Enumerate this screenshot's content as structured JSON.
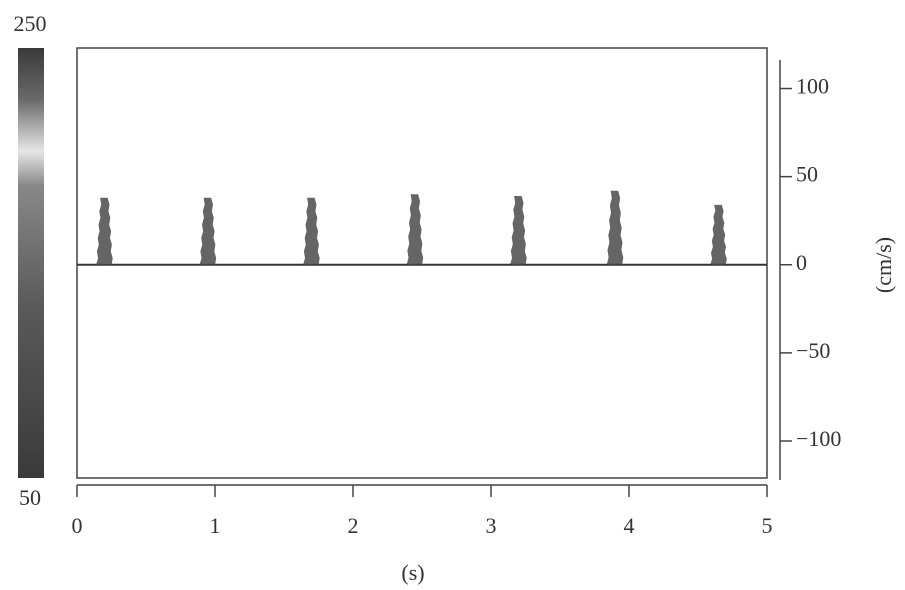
{
  "chart_data": {
    "type": "spectrogram",
    "x": [
      0.2,
      0.95,
      1.7,
      2.45,
      3.2,
      3.9,
      4.65
    ],
    "values": [
      38,
      38,
      38,
      40,
      39,
      42,
      34
    ],
    "color": "#4a4a4a",
    "xlim": [
      0,
      5
    ],
    "xticks": [
      0,
      1,
      2,
      3,
      4,
      5
    ],
    "ylim": [
      -121,
      123
    ],
    "yticks": [
      {
        "value": -100,
        "label": "−100"
      },
      {
        "value": -50,
        "label": "−50"
      },
      0,
      50,
      100
    ],
    "xlabel": "(s)",
    "ylabel": "(cm/s)",
    "clim": [
      50,
      250
    ]
  }
}
